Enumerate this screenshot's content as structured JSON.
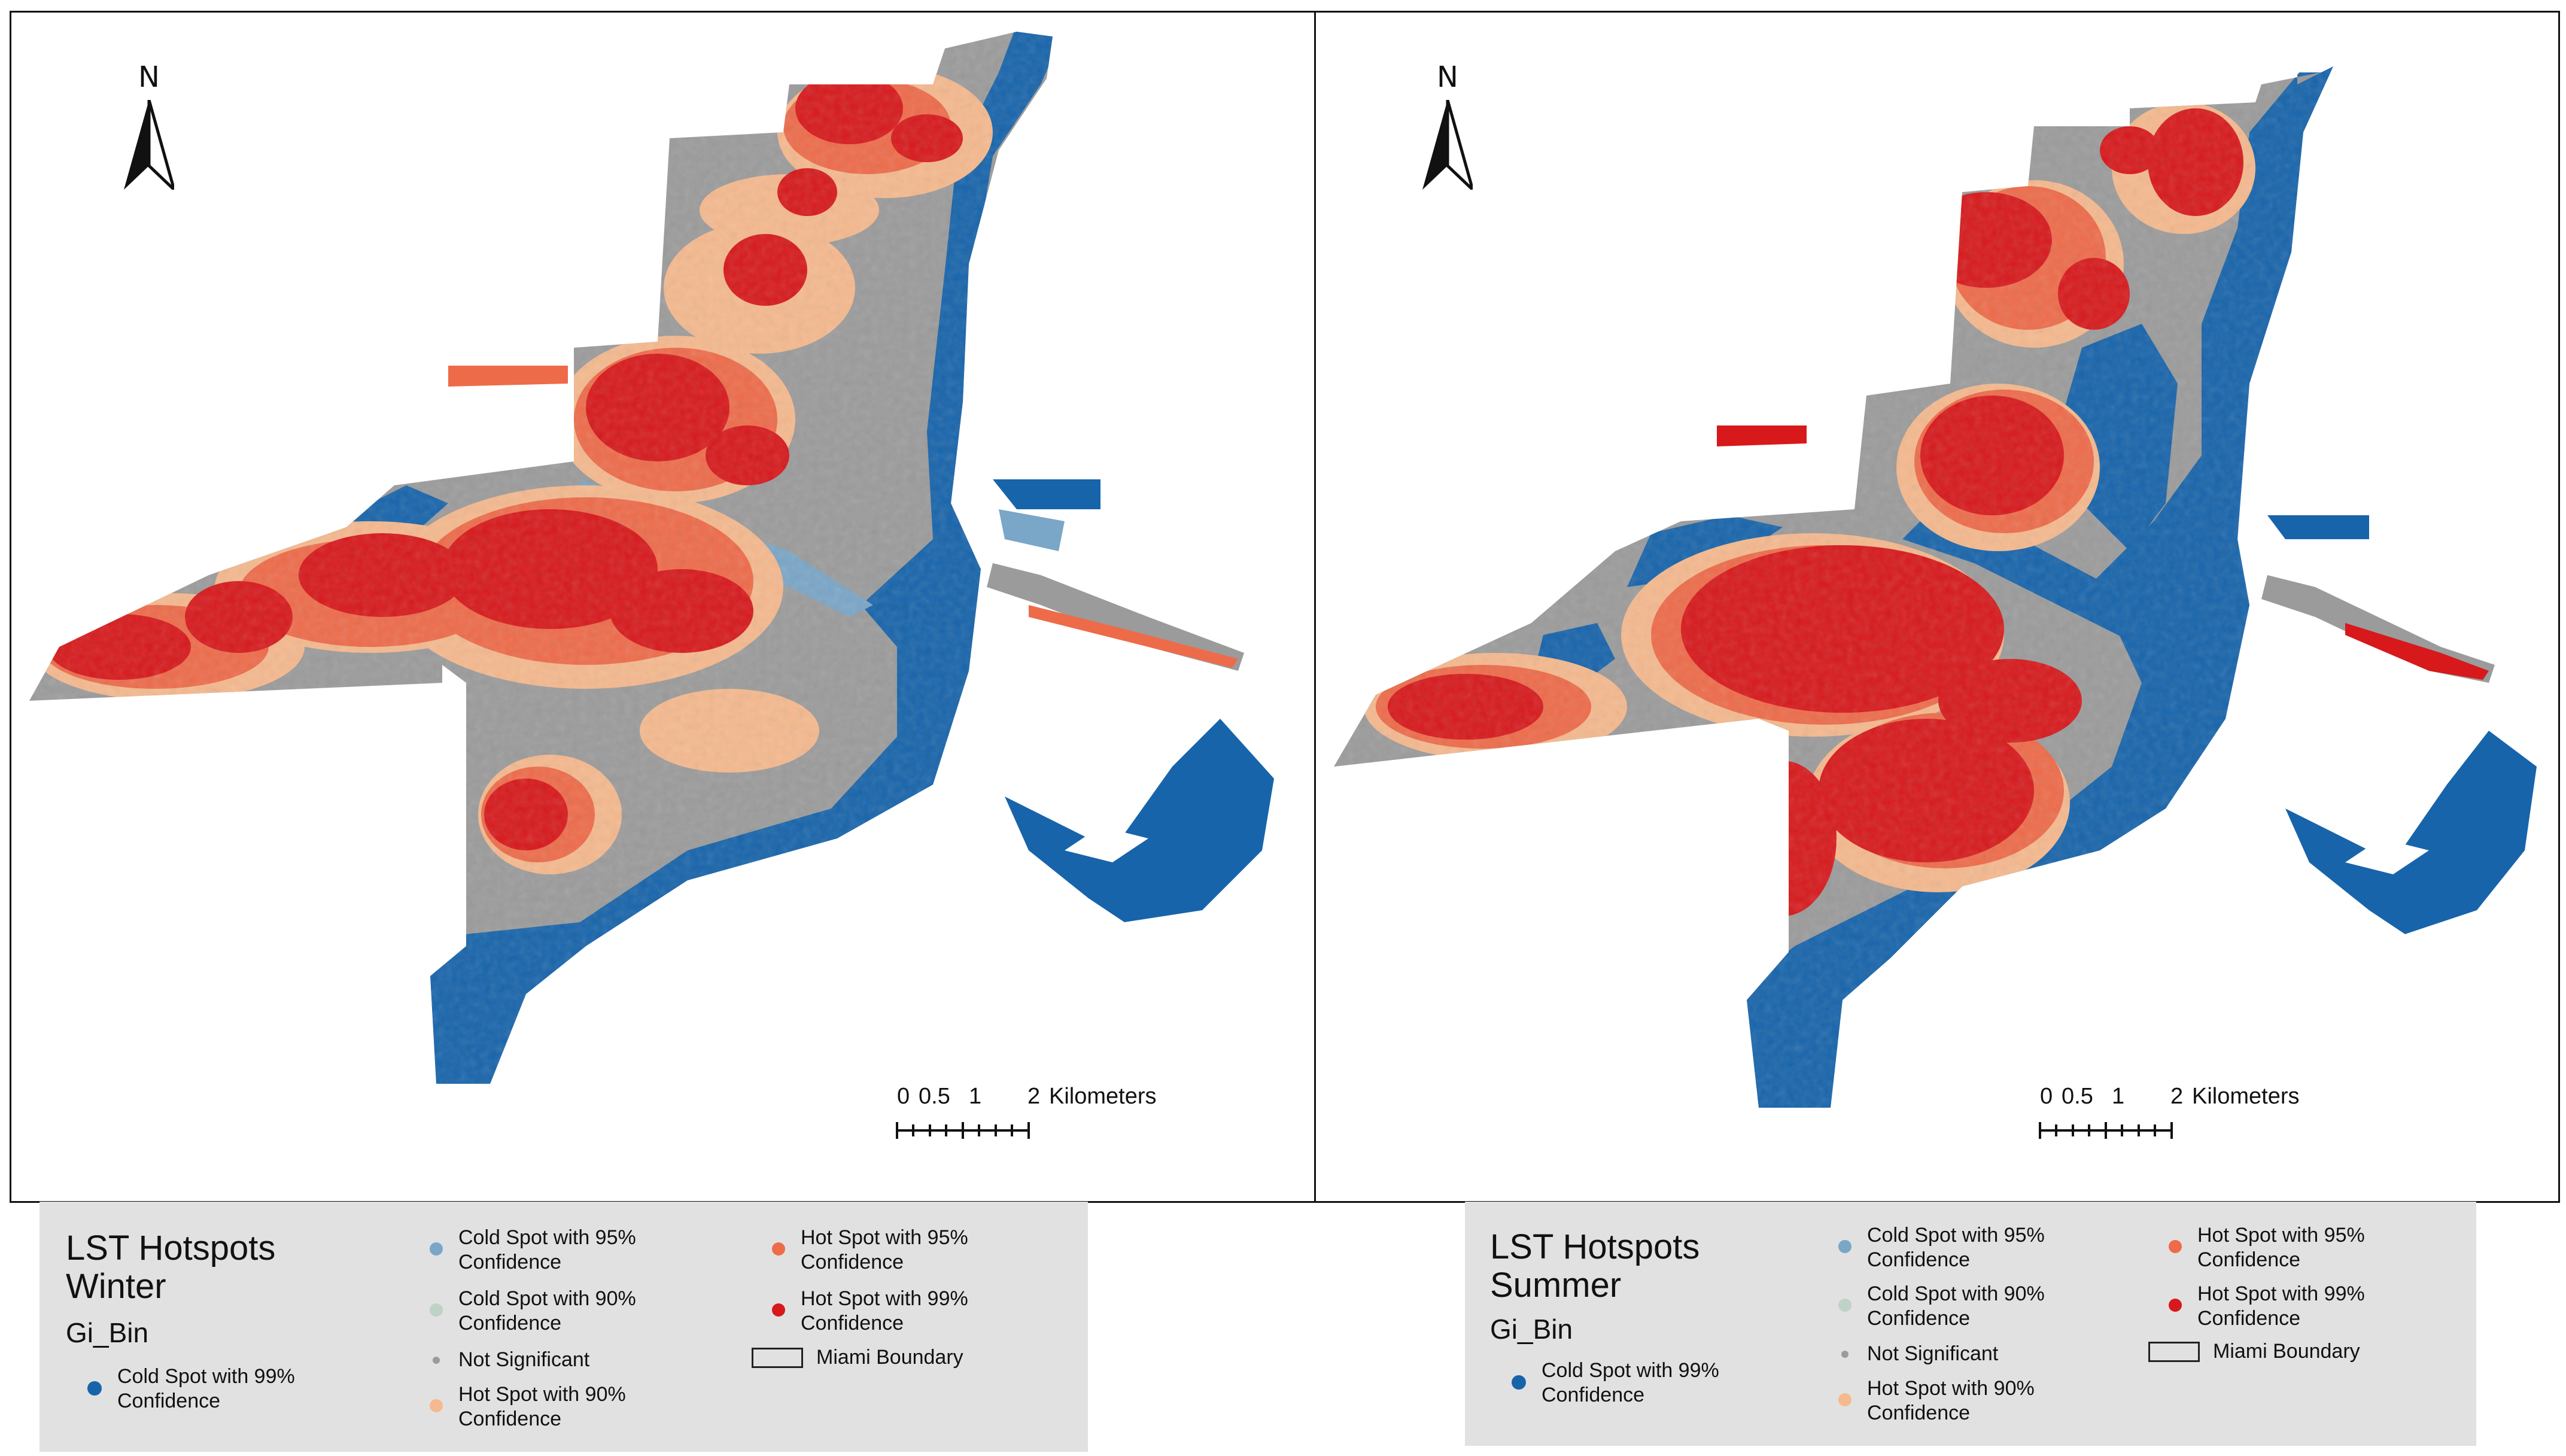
{
  "winter_panel": {
    "north_label": "N",
    "scale": {
      "tick_labels": [
        "0",
        "0.5",
        "1",
        "2"
      ],
      "unit": "Kilometers"
    },
    "legend": {
      "title_line1": "LST Hotspots",
      "title_line2": "Winter",
      "field": "Gi_Bin",
      "items": [
        {
          "line1": "Cold Spot with 99%",
          "line2": "Confidence",
          "color": "#1764ab"
        },
        {
          "line1": "Cold Spot with 95%",
          "line2": "Confidence",
          "color": "#7aa6c7"
        },
        {
          "line1": "Cold Spot with 90%",
          "line2": "Confidence",
          "color": "#bed2c6"
        },
        {
          "line1": "Not Significant",
          "line2": "",
          "color": "#9b9b9b"
        },
        {
          "line1": "Hot Spot with 90%",
          "line2": "Confidence",
          "color": "#f5b98e"
        },
        {
          "line1": "Hot Spot with 95%",
          "line2": "Confidence",
          "color": "#ee6b4a"
        },
        {
          "line1": "Hot Spot with 99%",
          "line2": "Confidence",
          "color": "#d7191c"
        },
        {
          "line1": "Miami Boundary",
          "line2": "",
          "color": "#ffffff"
        }
      ]
    }
  },
  "summer_panel": {
    "north_label": "N",
    "scale": {
      "tick_labels": [
        "0",
        "0.5",
        "1",
        "2"
      ],
      "unit": "Kilometers"
    },
    "legend": {
      "title_line1": "LST  Hotspots",
      "title_line2": "Summer",
      "field": "Gi_Bin",
      "items": [
        {
          "line1": "Cold Spot with 99%",
          "line2": "Confidence",
          "color": "#1764ab"
        },
        {
          "line1": "Cold Spot with 95%",
          "line2": "Confidence",
          "color": "#7aa6c7"
        },
        {
          "line1": "Cold Spot with 90%",
          "line2": "Confidence",
          "color": "#bed2c6"
        },
        {
          "line1": "Not Significant",
          "line2": "",
          "color": "#9b9b9b"
        },
        {
          "line1": "Hot Spot with 90%",
          "line2": "Confidence",
          "color": "#f5b98e"
        },
        {
          "line1": "Hot Spot with 95%",
          "line2": "Confidence",
          "color": "#ee6b4a"
        },
        {
          "line1": "Hot Spot with 99%",
          "line2": "Confidence",
          "color": "#d7191c"
        },
        {
          "line1": "Miami Boundary",
          "line2": "",
          "color": "#ffffff"
        }
      ]
    }
  }
}
